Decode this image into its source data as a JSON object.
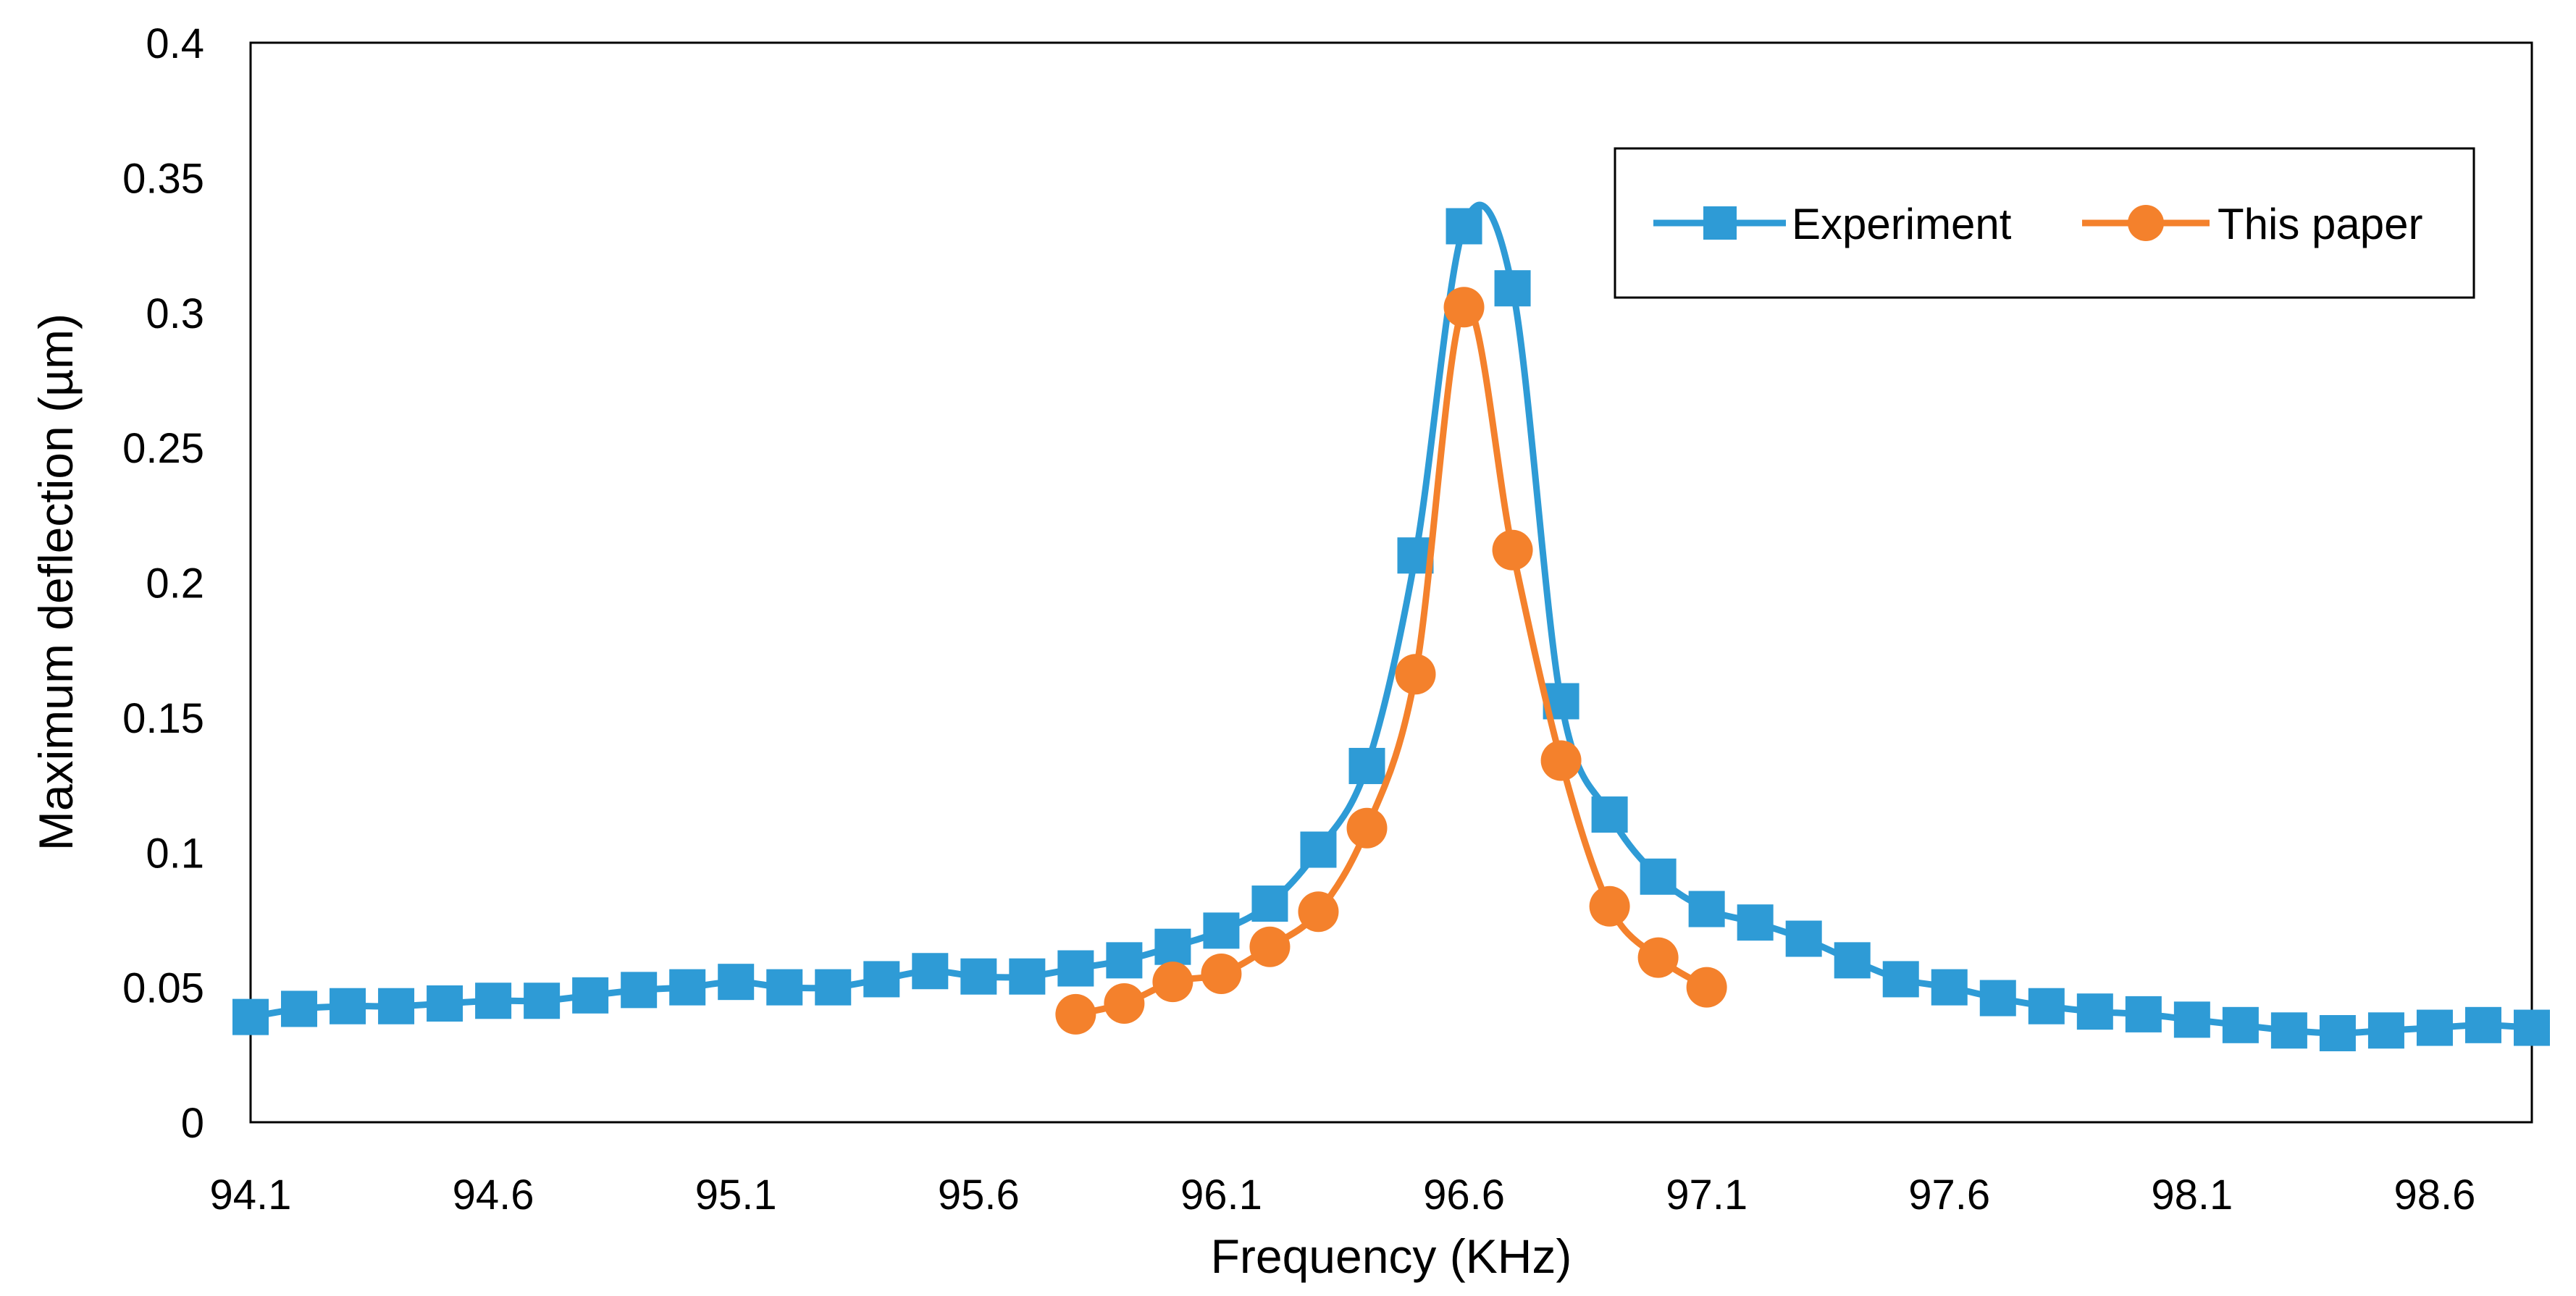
{
  "chart_data": {
    "type": "line",
    "title": "",
    "xlabel": "Frequency (KHz)",
    "ylabel": "Maximum deflection (µm)",
    "xlim": [
      94.1,
      98.8
    ],
    "ylim": [
      0,
      0.4
    ],
    "xticks": [
      "94.1",
      "94.6",
      "95.1",
      "95.6",
      "96.1",
      "96.6",
      "97.1",
      "97.6",
      "98.1",
      "98.6"
    ],
    "yticks": [
      "0",
      "0.05",
      "0.1",
      "0.15",
      "0.2",
      "0.25",
      "0.3",
      "0.35",
      "0.4"
    ],
    "grid": false,
    "legend_position": "top-right",
    "series": [
      {
        "name": "Experiment",
        "color": "#2E9BD6",
        "marker": "square",
        "x": [
          94.1,
          94.2,
          94.3,
          94.4,
          94.5,
          94.6,
          94.7,
          94.8,
          94.9,
          95.0,
          95.1,
          95.2,
          95.3,
          95.4,
          95.5,
          95.6,
          95.7,
          95.8,
          95.9,
          96.0,
          96.1,
          96.2,
          96.3,
          96.4,
          96.5,
          96.6,
          96.7,
          96.8,
          96.9,
          97.0,
          97.1,
          97.2,
          97.3,
          97.4,
          97.5,
          97.6,
          97.7,
          97.8,
          97.9,
          98.0,
          98.1,
          98.2,
          98.3,
          98.4,
          98.5,
          98.6,
          98.7,
          98.8
        ],
        "values": [
          0.039,
          0.042,
          0.043,
          0.043,
          0.044,
          0.045,
          0.045,
          0.047,
          0.049,
          0.05,
          0.052,
          0.05,
          0.05,
          0.053,
          0.056,
          0.054,
          0.054,
          0.057,
          0.06,
          0.065,
          0.071,
          0.081,
          0.101,
          0.132,
          0.21,
          0.332,
          0.309,
          0.156,
          0.114,
          0.091,
          0.079,
          0.074,
          0.068,
          0.06,
          0.053,
          0.05,
          0.046,
          0.043,
          0.041,
          0.04,
          0.038,
          0.036,
          0.034,
          0.033,
          0.034,
          0.035,
          0.036,
          0.035
        ]
      },
      {
        "name": "This paper",
        "color": "#F4812C",
        "marker": "circle",
        "x": [
          95.8,
          95.9,
          96.0,
          96.1,
          96.2,
          96.3,
          96.4,
          96.5,
          96.6,
          96.7,
          96.8,
          96.9,
          97.0,
          97.1
        ],
        "values": [
          0.04,
          0.044,
          0.052,
          0.055,
          0.065,
          0.078,
          0.109,
          0.166,
          0.302,
          0.212,
          0.134,
          0.08,
          0.061,
          0.05
        ]
      }
    ]
  }
}
